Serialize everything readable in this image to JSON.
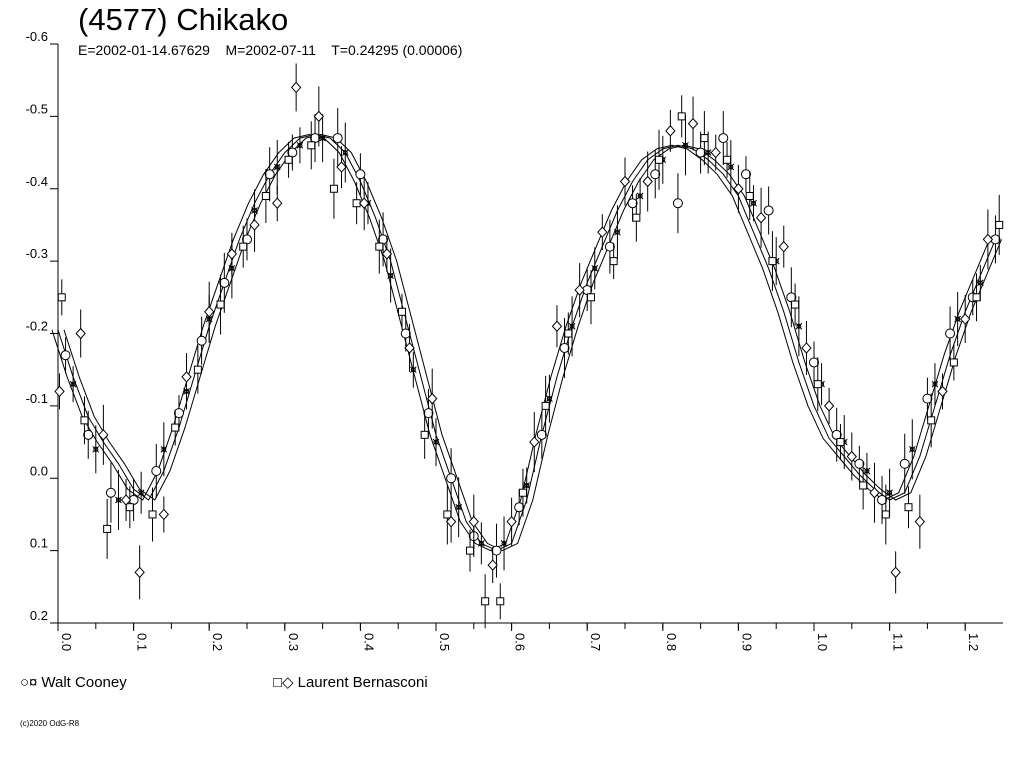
{
  "header": {
    "title": "(4577) Chikako",
    "subtitle": "E=2002-01-14.67629    M=2002-07-11    T=0.24295 (0.00006)"
  },
  "legend": [
    {
      "symbols": "○¤",
      "label": "Walt Cooney"
    },
    {
      "symbols": "□◇",
      "label": "Laurent Bernasconi"
    }
  ],
  "footer": {
    "copyright": "(c)2020 OdG-R8"
  },
  "chart_data": {
    "type": "scatter",
    "title": "(4577) Chikako",
    "subtitle": "E=2002-01-14.67629    M=2002-07-11    T=0.24295 (0.00006)",
    "xlabel": "",
    "ylabel": "",
    "xlim": [
      0.0,
      1.25
    ],
    "ylim": [
      0.2,
      -0.6
    ],
    "y_inverted": true,
    "x_ticks": [
      "0.0",
      "0.1",
      "0.2",
      "0.3",
      "0.4",
      "0.5",
      "0.6",
      "0.7",
      "0.8",
      "0.9",
      "1.0",
      "1.1",
      "1.2"
    ],
    "y_ticks": [
      "-0.6",
      "-0.5",
      "-0.4",
      "-0.3",
      "-0.2",
      "-0.1",
      "0.0",
      "0.1",
      "0.2"
    ],
    "grid": false,
    "legend_position": "bottom-left",
    "fit_curve": {
      "name": "Fourier fit",
      "x": [
        0.0,
        0.02,
        0.04,
        0.06,
        0.08,
        0.1,
        0.12,
        0.14,
        0.16,
        0.18,
        0.2,
        0.22,
        0.24,
        0.26,
        0.28,
        0.3,
        0.32,
        0.34,
        0.36,
        0.38,
        0.4,
        0.42,
        0.44,
        0.46,
        0.48,
        0.5,
        0.52,
        0.54,
        0.56,
        0.58,
        0.6,
        0.62,
        0.64,
        0.66,
        0.68,
        0.7,
        0.72,
        0.74,
        0.76,
        0.78,
        0.8,
        0.82,
        0.84,
        0.86,
        0.88,
        0.9,
        0.92,
        0.94,
        0.96,
        0.98,
        1.0,
        1.02,
        1.04,
        1.06,
        1.08,
        1.1,
        1.12,
        1.14,
        1.16,
        1.18,
        1.2,
        1.22,
        1.24
      ],
      "y": [
        -0.205,
        -0.14,
        -0.085,
        -0.05,
        -0.02,
        0.015,
        0.03,
        -0.01,
        -0.07,
        -0.14,
        -0.21,
        -0.27,
        -0.33,
        -0.38,
        -0.42,
        -0.45,
        -0.47,
        -0.475,
        -0.47,
        -0.45,
        -0.41,
        -0.36,
        -0.3,
        -0.22,
        -0.14,
        -0.06,
        0.0,
        0.06,
        0.09,
        0.1,
        0.09,
        0.03,
        -0.06,
        -0.14,
        -0.21,
        -0.27,
        -0.32,
        -0.37,
        -0.41,
        -0.44,
        -0.455,
        -0.46,
        -0.455,
        -0.44,
        -0.42,
        -0.39,
        -0.34,
        -0.29,
        -0.23,
        -0.16,
        -0.1,
        -0.055,
        -0.03,
        -0.005,
        0.015,
        0.03,
        0.02,
        -0.03,
        -0.1,
        -0.17,
        -0.23,
        -0.28,
        -0.33
      ]
    },
    "series": [
      {
        "name": "Walt Cooney",
        "marker": "circle",
        "x": [
          0.01,
          0.04,
          0.07,
          0.1,
          0.13,
          0.16,
          0.19,
          0.22,
          0.25,
          0.28,
          0.31,
          0.34,
          0.37,
          0.4,
          0.43,
          0.46,
          0.49,
          0.52,
          0.55,
          0.58,
          0.61,
          0.64,
          0.67,
          0.7,
          0.73,
          0.76,
          0.79,
          0.82,
          0.85,
          0.88,
          0.91,
          0.94,
          0.97,
          1.0,
          1.03,
          1.06,
          1.09,
          1.12,
          1.15,
          1.18,
          1.21,
          1.24
        ],
        "y": [
          -0.17,
          -0.06,
          0.02,
          0.03,
          -0.01,
          -0.09,
          -0.19,
          -0.27,
          -0.33,
          -0.42,
          -0.45,
          -0.47,
          -0.47,
          -0.42,
          -0.33,
          -0.2,
          -0.09,
          0.0,
          0.08,
          0.1,
          0.04,
          -0.06,
          -0.18,
          -0.26,
          -0.32,
          -0.38,
          -0.42,
          -0.38,
          -0.45,
          -0.47,
          -0.42,
          -0.37,
          -0.25,
          -0.16,
          -0.06,
          -0.02,
          0.03,
          -0.02,
          -0.11,
          -0.2,
          -0.25,
          -0.33
        ]
      },
      {
        "name": "Walt Cooney",
        "marker": "cross",
        "x": [
          0.02,
          0.05,
          0.08,
          0.11,
          0.14,
          0.17,
          0.2,
          0.23,
          0.26,
          0.29,
          0.32,
          0.35,
          0.38,
          0.41,
          0.44,
          0.47,
          0.5,
          0.53,
          0.56,
          0.59,
          0.62,
          0.65,
          0.68,
          0.71,
          0.74,
          0.77,
          0.8,
          0.83,
          0.86,
          0.89,
          0.92,
          0.95,
          0.98,
          1.01,
          1.04,
          1.07,
          1.1,
          1.13,
          1.16,
          1.19,
          1.22
        ],
        "y": [
          -0.13,
          -0.04,
          0.03,
          0.02,
          -0.04,
          -0.12,
          -0.22,
          -0.29,
          -0.37,
          -0.43,
          -0.46,
          -0.47,
          -0.45,
          -0.38,
          -0.28,
          -0.15,
          -0.05,
          0.04,
          0.09,
          0.09,
          0.01,
          -0.11,
          -0.21,
          -0.29,
          -0.34,
          -0.39,
          -0.44,
          -0.46,
          -0.45,
          -0.43,
          -0.38,
          -0.3,
          -0.21,
          -0.13,
          -0.05,
          -0.01,
          0.02,
          -0.04,
          -0.13,
          -0.22,
          -0.27
        ]
      },
      {
        "name": "Laurent Bernasconi",
        "marker": "square",
        "x": [
          0.005,
          0.035,
          0.065,
          0.095,
          0.125,
          0.155,
          0.185,
          0.215,
          0.245,
          0.275,
          0.305,
          0.335,
          0.365,
          0.395,
          0.425,
          0.455,
          0.485,
          0.515,
          0.545,
          0.565,
          0.585,
          0.615,
          0.645,
          0.675,
          0.705,
          0.735,
          0.765,
          0.795,
          0.825,
          0.855,
          0.885,
          0.915,
          0.945,
          0.975,
          1.005,
          1.035,
          1.065,
          1.095,
          1.125,
          1.155,
          1.185,
          1.215,
          1.245
        ],
        "y": [
          -0.25,
          -0.08,
          0.07,
          0.04,
          0.05,
          -0.07,
          -0.15,
          -0.24,
          -0.32,
          -0.39,
          -0.44,
          -0.46,
          -0.4,
          -0.38,
          -0.32,
          -0.23,
          -0.06,
          0.05,
          0.1,
          0.17,
          0.17,
          0.02,
          -0.1,
          -0.2,
          -0.25,
          -0.3,
          -0.36,
          -0.44,
          -0.5,
          -0.47,
          -0.44,
          -0.39,
          -0.3,
          -0.24,
          -0.13,
          -0.05,
          0.01,
          0.05,
          0.04,
          -0.08,
          -0.16,
          -0.25,
          -0.35
        ]
      },
      {
        "name": "Laurent Bernasconi",
        "marker": "diamond",
        "x": [
          0.002,
          0.03,
          0.06,
          0.09,
          0.108,
          0.14,
          0.17,
          0.2,
          0.23,
          0.26,
          0.29,
          0.315,
          0.345,
          0.375,
          0.405,
          0.435,
          0.465,
          0.495,
          0.52,
          0.55,
          0.575,
          0.6,
          0.63,
          0.66,
          0.69,
          0.72,
          0.75,
          0.78,
          0.81,
          0.84,
          0.87,
          0.9,
          0.93,
          0.96,
          0.99,
          1.02,
          1.05,
          1.08,
          1.108,
          1.14,
          1.17,
          1.2,
          1.23
        ],
        "y": [
          -0.12,
          -0.2,
          -0.06,
          0.03,
          0.13,
          0.05,
          -0.14,
          -0.23,
          -0.31,
          -0.35,
          -0.38,
          -0.54,
          -0.5,
          -0.43,
          -0.38,
          -0.31,
          -0.18,
          -0.11,
          0.06,
          0.06,
          0.12,
          0.06,
          -0.05,
          -0.21,
          -0.26,
          -0.34,
          -0.41,
          -0.41,
          -0.48,
          -0.49,
          -0.45,
          -0.4,
          -0.36,
          -0.32,
          -0.18,
          -0.1,
          -0.03,
          0.02,
          0.13,
          0.06,
          -0.12,
          -0.22,
          -0.33
        ]
      }
    ]
  }
}
